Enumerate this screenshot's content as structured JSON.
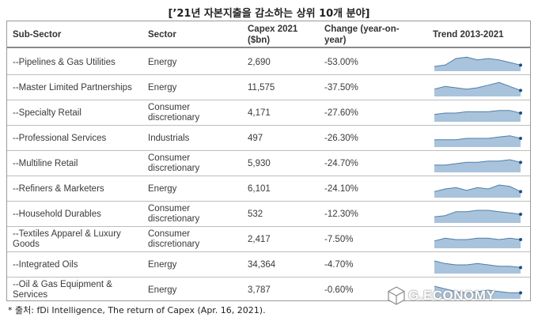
{
  "title": "[’21년 자본지출을 감소하는 상위 10개 분야]",
  "headers": {
    "sub_sector": "Sub-Sector",
    "sector": "Sector",
    "capex_line1": "Capex 2021",
    "capex_line2": "($bn)",
    "change_line1": "Change (year-on-",
    "change_line2": "year)",
    "trend": "Trend 2013-2021"
  },
  "rows": [
    {
      "sub": "--Pipelines & Gas Utilities",
      "sector": "Energy",
      "capex": "2,690",
      "change": "-53.00%",
      "trend": [
        3,
        4,
        9,
        10,
        8,
        9,
        8,
        6,
        4
      ]
    },
    {
      "sub": "--Master Limited Partnerships",
      "sector": "Energy",
      "capex": "11,575",
      "change": "-37.50%",
      "trend": [
        5,
        7,
        6,
        5,
        6,
        8,
        10,
        7,
        4
      ]
    },
    {
      "sub": "--Specialty Retail",
      "sector": "Consumer discretionary",
      "capex": "4,171",
      "change": "-27.60%",
      "trend": [
        5,
        6,
        6,
        7,
        7,
        7,
        8,
        8,
        6
      ]
    },
    {
      "sub": "--Professional Services",
      "sector": "Industrials",
      "capex": "497",
      "change": "-26.30%",
      "trend": [
        5,
        5,
        5,
        6,
        6,
        6,
        7,
        8,
        6
      ]
    },
    {
      "sub": "--Multiline Retail",
      "sector": "Consumer discretionary",
      "capex": "5,930",
      "change": "-24.70%",
      "trend": [
        5,
        5,
        6,
        7,
        7,
        8,
        8,
        9,
        7
      ]
    },
    {
      "sub": "--Refiners & Marketers",
      "sector": "Energy",
      "capex": "6,101",
      "change": "-24.10%",
      "trend": [
        4,
        6,
        7,
        5,
        7,
        6,
        9,
        8,
        4
      ]
    },
    {
      "sub": "--Household Durables",
      "sector": "Consumer discretionary",
      "capex": "532",
      "change": "-12.30%",
      "trend": [
        4,
        5,
        8,
        8,
        9,
        9,
        8,
        7,
        6
      ]
    },
    {
      "sub": "--Textiles Apparel & Luxury Goods",
      "sector": "Consumer discretionary",
      "capex": "2,417",
      "change": "-7.50%",
      "trend": [
        5,
        7,
        6,
        6,
        7,
        7,
        6,
        7,
        6
      ]
    },
    {
      "sub": "--Integrated Oils",
      "sector": "Energy",
      "capex": "34,364",
      "change": "-4.70%",
      "trend": [
        9,
        7,
        6,
        6,
        7,
        6,
        5,
        5,
        4
      ]
    },
    {
      "sub": "--Oil & Gas Equipment & Services",
      "sector": "Energy",
      "capex": "3,787",
      "change": "-0.60%",
      "trend": [
        9,
        7,
        5,
        4,
        5,
        6,
        5,
        4,
        4
      ]
    }
  ],
  "footer": "* 출처: fDi Intelligence, The return of Capex (Apr. 16, 2021).",
  "watermark": "G.ECONOMY",
  "colors": {
    "spark_fill": "#a9c3dc",
    "spark_line": "#4f7ea8",
    "spark_dot": "#1d4f7c"
  }
}
